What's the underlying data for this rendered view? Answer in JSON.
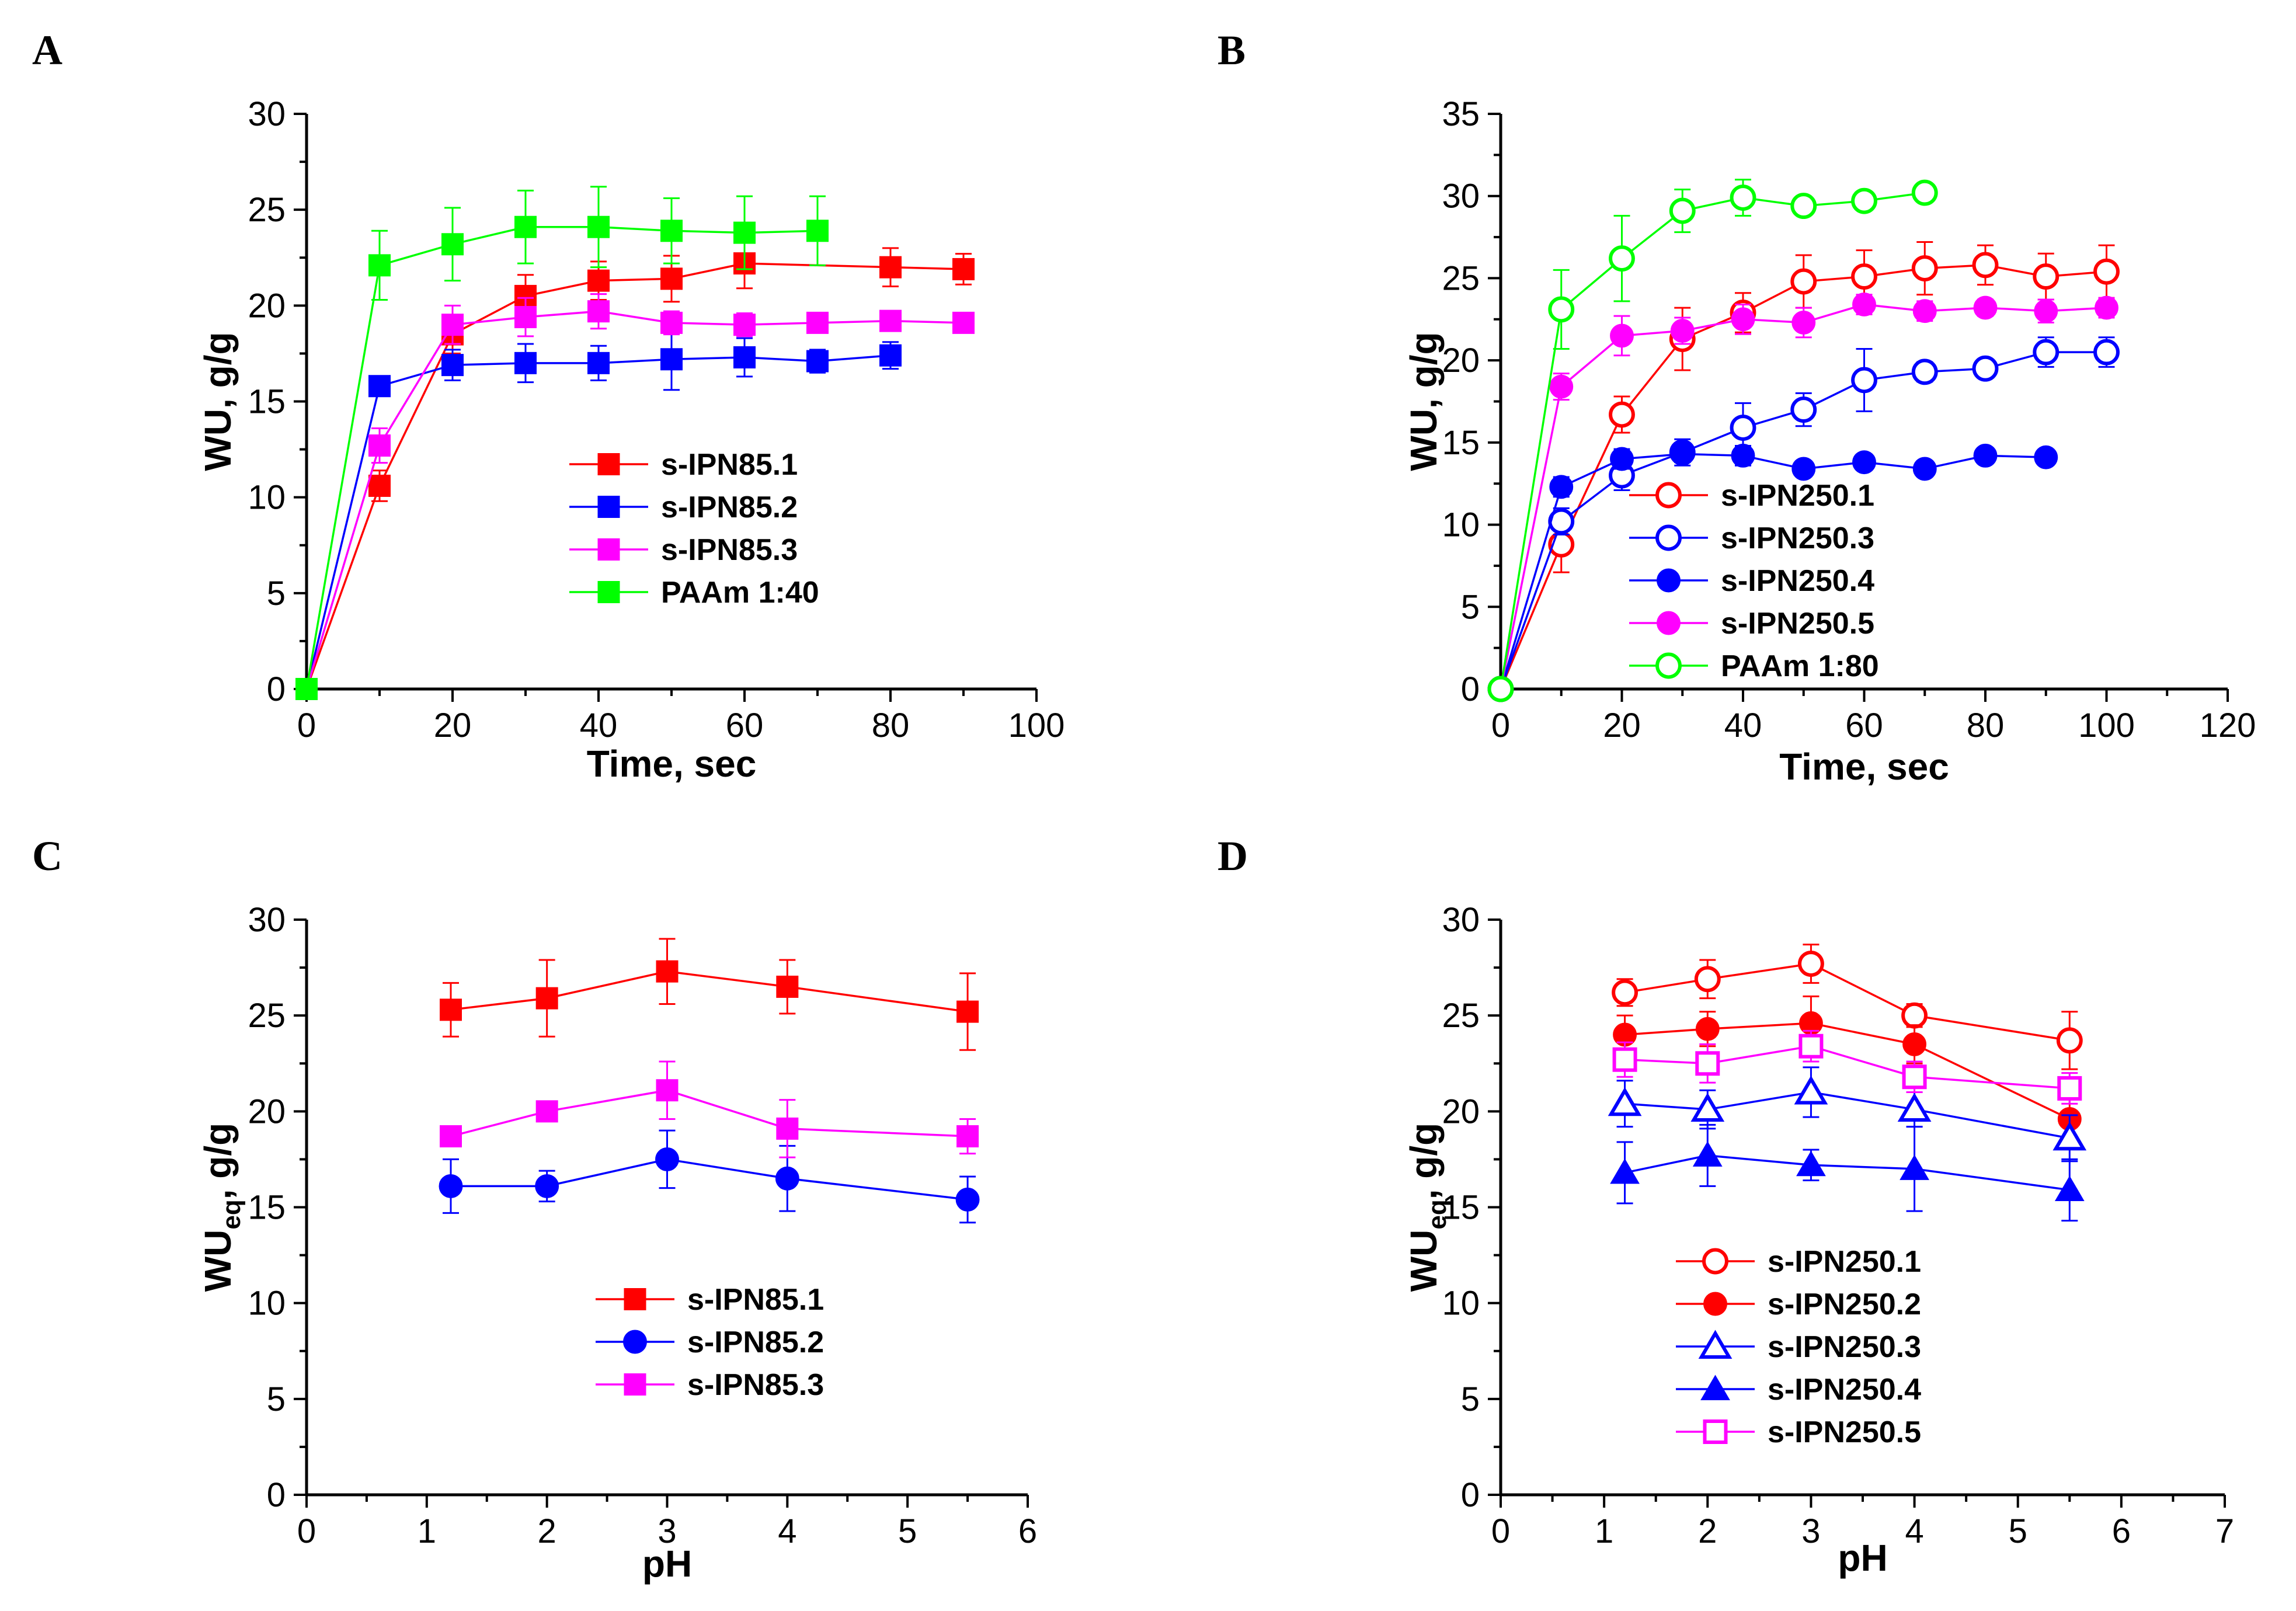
{
  "chart_data": [
    {
      "panel": "A",
      "type": "line",
      "xlabel": "Time, sec",
      "ylabel": "WU, g/g",
      "xlim": [
        0,
        100
      ],
      "ylim": [
        0,
        30
      ],
      "xticks": [
        0,
        20,
        40,
        60,
        80,
        100
      ],
      "yticks": [
        0,
        5,
        10,
        15,
        20,
        25,
        30
      ],
      "legend": "center",
      "series": [
        {
          "name": "s-IPN85.1",
          "color": "#ff0000",
          "marker": "square",
          "filled": true,
          "x": [
            0,
            10,
            20,
            30,
            40,
            50,
            60,
            80,
            90
          ],
          "y": [
            0,
            10.6,
            18.5,
            20.5,
            21.3,
            21.4,
            22.2,
            22.0,
            21.9
          ],
          "err": [
            0,
            0.8,
            1.0,
            1.1,
            1.0,
            1.2,
            1.3,
            1.0,
            0.8
          ]
        },
        {
          "name": "s-IPN85.2",
          "color": "#0000ff",
          "marker": "square",
          "filled": true,
          "x": [
            0,
            10,
            20,
            30,
            40,
            50,
            60,
            70,
            80
          ],
          "y": [
            0,
            15.8,
            16.9,
            17.0,
            17.0,
            17.2,
            17.3,
            17.1,
            17.4
          ],
          "err": [
            0,
            0.5,
            0.8,
            1.0,
            0.9,
            1.6,
            1.0,
            0.6,
            0.7
          ]
        },
        {
          "name": "s-IPN85.3",
          "color": "#ff00ff",
          "marker": "square",
          "filled": true,
          "x": [
            0,
            10,
            20,
            30,
            40,
            50,
            60,
            70,
            80,
            90
          ],
          "y": [
            0,
            12.7,
            19.0,
            19.4,
            19.7,
            19.1,
            19.0,
            19.1,
            19.2,
            19.1
          ],
          "err": [
            0,
            0.9,
            1.0,
            1.0,
            0.9,
            0.6,
            0.6,
            0.5,
            0.5,
            0.4
          ]
        },
        {
          "name": "PAAm 1:40",
          "color": "#00ff00",
          "marker": "square",
          "filled": true,
          "x": [
            0,
            10,
            20,
            30,
            40,
            50,
            60,
            70
          ],
          "y": [
            0,
            22.1,
            23.2,
            24.1,
            24.1,
            23.9,
            23.8,
            23.9
          ],
          "err": [
            0,
            1.8,
            1.9,
            1.9,
            2.1,
            1.7,
            1.9,
            1.8
          ]
        }
      ]
    },
    {
      "panel": "B",
      "type": "line",
      "xlabel": "Time, sec",
      "ylabel": "WU, g/g",
      "xlim": [
        0,
        120
      ],
      "ylim": [
        0,
        35
      ],
      "xticks": [
        0,
        20,
        40,
        60,
        80,
        100,
        120
      ],
      "yticks": [
        0,
        5,
        10,
        15,
        20,
        25,
        30,
        35
      ],
      "legend": "bottom-left",
      "series": [
        {
          "name": "s-IPN250.1",
          "color": "#ff0000",
          "marker": "circle",
          "filled": false,
          "x": [
            0,
            10,
            20,
            30,
            40,
            50,
            60,
            70,
            80,
            90,
            100
          ],
          "y": [
            0,
            8.8,
            16.7,
            21.3,
            22.9,
            24.8,
            25.1,
            25.6,
            25.8,
            25.1,
            25.4
          ],
          "err": [
            0,
            1.7,
            1.1,
            1.9,
            1.2,
            1.6,
            1.6,
            1.6,
            1.2,
            1.4,
            1.6
          ]
        },
        {
          "name": "s-IPN250.3",
          "color": "#0000ff",
          "marker": "circle",
          "filled": false,
          "x": [
            0,
            10,
            20,
            30,
            40,
            50,
            60,
            70,
            80,
            90,
            100
          ],
          "y": [
            0,
            10.2,
            13.0,
            14.4,
            15.9,
            17.0,
            18.8,
            19.3,
            19.5,
            20.5,
            20.5
          ],
          "err": [
            0,
            0.8,
            0.9,
            0.8,
            1.5,
            1.0,
            1.9,
            0.6,
            0.5,
            0.9,
            0.9
          ]
        },
        {
          "name": "s-IPN250.4",
          "color": "#0000ff",
          "marker": "circle",
          "filled": true,
          "x": [
            0,
            10,
            20,
            30,
            40,
            50,
            60,
            70,
            80,
            90
          ],
          "y": [
            0,
            12.3,
            14.0,
            14.3,
            14.2,
            13.4,
            13.8,
            13.4,
            14.2,
            14.1
          ],
          "err": [
            0,
            0.6,
            0.6,
            0.5,
            0.6,
            0.4,
            0.4,
            0.4,
            0.4,
            0.4
          ]
        },
        {
          "name": "s-IPN250.5",
          "color": "#ff00ff",
          "marker": "circle",
          "filled": true,
          "x": [
            0,
            10,
            20,
            30,
            40,
            50,
            60,
            70,
            80,
            90,
            100
          ],
          "y": [
            0,
            18.4,
            21.5,
            21.8,
            22.5,
            22.3,
            23.4,
            23.0,
            23.2,
            23.0,
            23.2
          ],
          "err": [
            0,
            0.8,
            1.2,
            0.8,
            0.9,
            0.9,
            0.6,
            0.6,
            0.5,
            0.7,
            0.6
          ]
        },
        {
          "name": "PAAm 1:80",
          "color": "#00ff00",
          "marker": "circle",
          "filled": false,
          "x": [
            0,
            10,
            20,
            30,
            40,
            50,
            60,
            70
          ],
          "y": [
            0,
            23.1,
            26.2,
            29.1,
            29.9,
            29.4,
            29.7,
            30.2
          ],
          "err": [
            0,
            2.4,
            2.6,
            1.3,
            1.1,
            0.5,
            0.5,
            0.5
          ]
        }
      ]
    },
    {
      "panel": "C",
      "type": "line",
      "xlabel": "pH",
      "ylabel": "WU",
      "ylabel_sub": "eq",
      "ylabel_suffix": ", g/g",
      "xlim": [
        0,
        6
      ],
      "ylim": [
        0,
        30
      ],
      "xticks": [
        0,
        1,
        2,
        3,
        4,
        5,
        6
      ],
      "yticks": [
        0,
        5,
        10,
        15,
        20,
        25,
        30
      ],
      "legend": "bottom-center",
      "series": [
        {
          "name": "s-IPN85.1",
          "color": "#ff0000",
          "marker": "square",
          "filled": true,
          "x": [
            1.2,
            2,
            3,
            4,
            5.5
          ],
          "y": [
            25.3,
            25.9,
            27.3,
            26.5,
            25.2
          ],
          "err": [
            1.4,
            2.0,
            1.7,
            1.4,
            2.0
          ]
        },
        {
          "name": "s-IPN85.2",
          "color": "#0000ff",
          "marker": "circle",
          "filled": true,
          "x": [
            1.2,
            2,
            3,
            4,
            5.5
          ],
          "y": [
            16.1,
            16.1,
            17.5,
            16.5,
            15.4
          ],
          "err": [
            1.4,
            0.8,
            1.5,
            1.7,
            1.2
          ]
        },
        {
          "name": "s-IPN85.3",
          "color": "#ff00ff",
          "marker": "square",
          "filled": true,
          "x": [
            1.2,
            2,
            3,
            4,
            5.5
          ],
          "y": [
            18.7,
            20.0,
            21.1,
            19.1,
            18.7
          ],
          "err": [
            0.5,
            0.5,
            1.5,
            1.5,
            0.9
          ]
        }
      ]
    },
    {
      "panel": "D",
      "type": "line",
      "xlabel": "pH",
      "ylabel": "WU",
      "ylabel_sub": "eq",
      "ylabel_suffix": ", g/g",
      "xlim": [
        0,
        7
      ],
      "ylim": [
        0,
        30
      ],
      "xticks": [
        0,
        1,
        2,
        3,
        4,
        5,
        6,
        7
      ],
      "yticks": [
        0,
        5,
        10,
        15,
        20,
        25,
        30
      ],
      "legend": "bottom-center",
      "series": [
        {
          "name": "s-IPN250.1",
          "color": "#ff0000",
          "marker": "circle",
          "filled": false,
          "x": [
            1.2,
            2,
            3,
            4,
            5.5
          ],
          "y": [
            26.2,
            26.9,
            27.7,
            25.0,
            23.7
          ],
          "err": [
            0.7,
            1.0,
            1.0,
            0.6,
            1.5
          ]
        },
        {
          "name": "s-IPN250.2",
          "color": "#ff0000",
          "marker": "circle",
          "filled": true,
          "x": [
            1.2,
            2,
            3,
            4,
            5.5
          ],
          "y": [
            24.0,
            24.3,
            24.6,
            23.5,
            19.6
          ],
          "err": [
            1.0,
            0.9,
            1.4,
            1.0,
            1.2
          ]
        },
        {
          "name": "s-IPN250.3",
          "color": "#0000ff",
          "marker": "triangle",
          "filled": false,
          "x": [
            1.2,
            2,
            3,
            4,
            5.5
          ],
          "y": [
            20.4,
            20.1,
            21.0,
            20.1,
            18.6
          ],
          "err": [
            1.2,
            1.0,
            1.3,
            0.9,
            1.2
          ]
        },
        {
          "name": "s-IPN250.4",
          "color": "#0000ff",
          "marker": "triangle",
          "filled": true,
          "x": [
            1.2,
            2,
            3,
            4,
            5.5
          ],
          "y": [
            16.8,
            17.7,
            17.2,
            17.0,
            15.9
          ],
          "err": [
            1.6,
            1.6,
            0.8,
            2.2,
            1.6
          ]
        },
        {
          "name": "s-IPN250.5",
          "color": "#ff00ff",
          "marker": "square",
          "filled": false,
          "x": [
            1.2,
            2,
            3,
            4,
            5.5
          ],
          "y": [
            22.7,
            22.5,
            23.4,
            21.8,
            21.2
          ],
          "err": [
            0.9,
            1.0,
            0.8,
            0.8,
            0.8
          ]
        }
      ]
    }
  ]
}
